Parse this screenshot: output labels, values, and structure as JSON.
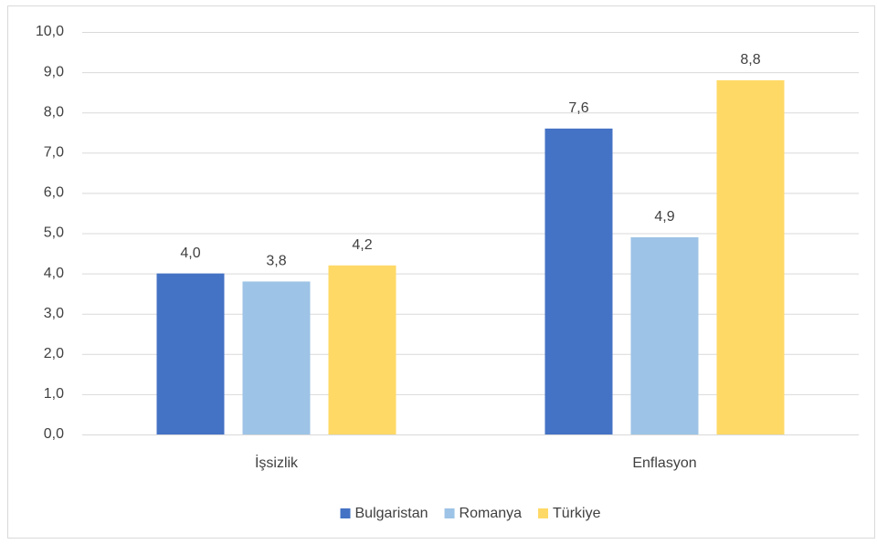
{
  "chart_data": {
    "type": "bar",
    "categories": [
      "İşsizlik",
      "Enflasyon"
    ],
    "series": [
      {
        "name": "Bulgaristan",
        "color": "#4472c4",
        "values": [
          4.0,
          7.6
        ],
        "value_labels": [
          "4,0",
          "7,6"
        ]
      },
      {
        "name": "Romanya",
        "color": "#9dc3e6",
        "values": [
          3.8,
          4.9
        ],
        "value_labels": [
          "3,8",
          "4,9"
        ]
      },
      {
        "name": "Türkiye",
        "color": "#ffd966",
        "values": [
          4.2,
          8.8
        ],
        "value_labels": [
          "4,2",
          "8,8"
        ]
      }
    ],
    "ylim": [
      0,
      10
    ],
    "yticks": [
      {
        "value": 0,
        "label": "0,0"
      },
      {
        "value": 1,
        "label": "1,0"
      },
      {
        "value": 2,
        "label": "2,0"
      },
      {
        "value": 3,
        "label": "3,0"
      },
      {
        "value": 4,
        "label": "4,0"
      },
      {
        "value": 5,
        "label": "5,0"
      },
      {
        "value": 6,
        "label": "6,0"
      },
      {
        "value": 7,
        "label": "7,0"
      },
      {
        "value": 8,
        "label": "8,0"
      },
      {
        "value": 9,
        "label": "9,0"
      },
      {
        "value": 10,
        "label": "10,0"
      }
    ],
    "grid": true,
    "legend": "bottom"
  }
}
